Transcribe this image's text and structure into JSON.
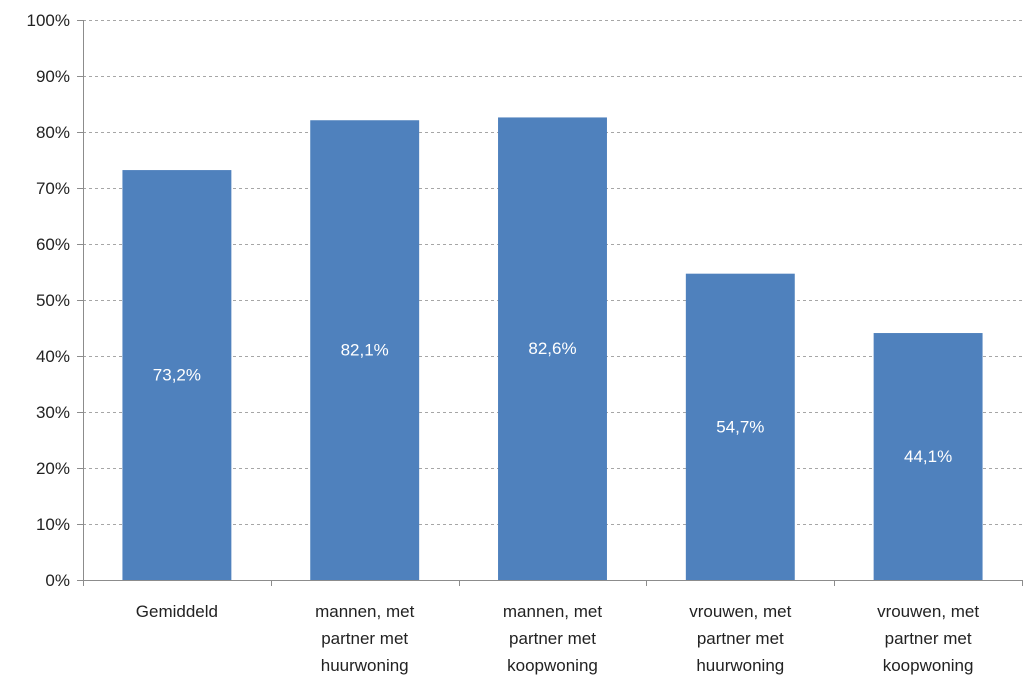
{
  "chart_data": {
    "type": "bar",
    "categories": [
      [
        "Gemiddeld"
      ],
      [
        "mannen, met",
        "partner met",
        "huurwoning"
      ],
      [
        "mannen, met",
        "partner met",
        "koopwoning"
      ],
      [
        "vrouwen, met",
        "partner met",
        "huurwoning"
      ],
      [
        "vrouwen, met",
        "partner met",
        "koopwoning"
      ]
    ],
    "values": [
      73.2,
      82.1,
      82.6,
      54.7,
      44.1
    ],
    "data_labels": [
      "73,2%",
      "82,1%",
      "82,6%",
      "54,7%",
      "44,1%"
    ],
    "ylim": [
      0,
      100
    ],
    "yticks": [
      0,
      10,
      20,
      30,
      40,
      50,
      60,
      70,
      80,
      90,
      100
    ],
    "ytick_labels": [
      "0%",
      "10%",
      "20%",
      "30%",
      "40%",
      "50%",
      "60%",
      "70%",
      "80%",
      "90%",
      "100%"
    ],
    "title": "",
    "xlabel": "",
    "ylabel": "",
    "grid": true,
    "legend": "none",
    "bar_color": "#4f81bd",
    "label_color": "#ffffff",
    "grid_color": "#a6a6a6"
  }
}
